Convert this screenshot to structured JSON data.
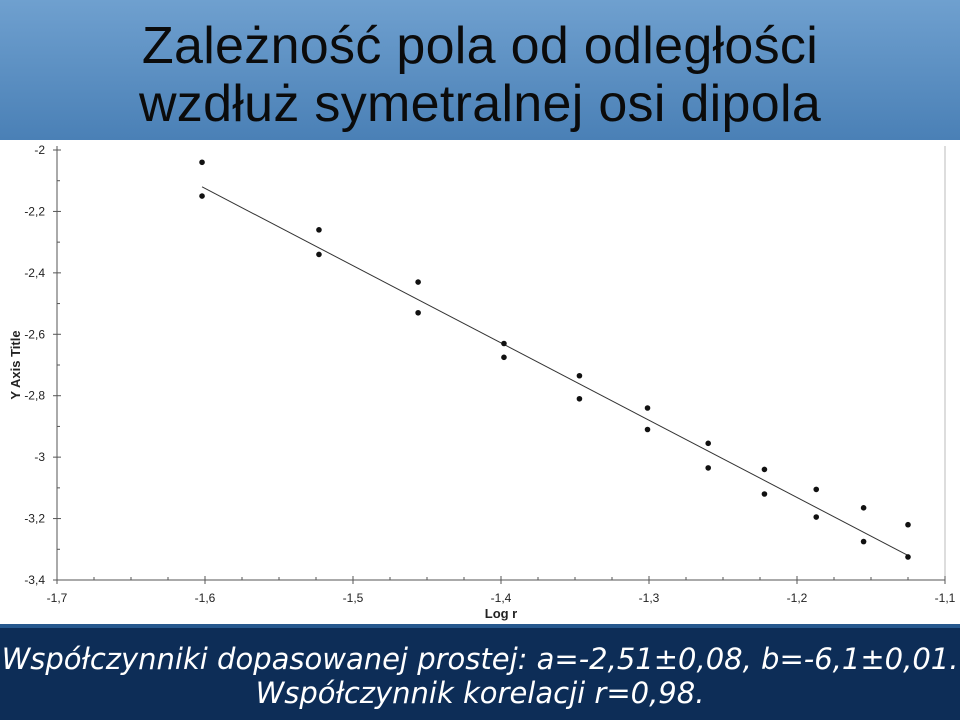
{
  "slide": {
    "title_line1": "Zależność pola od odległości",
    "title_line2": "wzdłuż symetralnej osi dipola",
    "footer_line1": "Współczynniki dopasowanej prostej: a=-2,51±0,08, b=-6,1±0,01.",
    "footer_line2": "Współczynnik korelacji r=0,98."
  },
  "colors": {
    "point": "#111111",
    "fit_line": "#333333",
    "axis": "#555555"
  },
  "chart_data": {
    "type": "scatter",
    "title": "",
    "xlabel": "Log r",
    "ylabel": "Y Axis Title",
    "xlim": [
      -1.7,
      -1.1
    ],
    "ylim": [
      -3.4,
      -2.0
    ],
    "x_ticks": [
      -1.7,
      -1.6,
      -1.5,
      -1.4,
      -1.3,
      -1.2,
      -1.1
    ],
    "x_tick_labels": [
      "-1,7",
      "-1,6",
      "-1,5",
      "-1,4",
      "-1,3",
      "-1,2",
      "-1,1"
    ],
    "y_ticks": [
      -2.0,
      -2.2,
      -2.4,
      -2.6,
      -2.8,
      -3.0,
      -3.2,
      -3.4
    ],
    "y_tick_labels": [
      "-2",
      "-2,2",
      "-2,4",
      "-2,6",
      "-2,8",
      "-3",
      "-3,2",
      "-3,4"
    ],
    "grid": false,
    "series": [
      {
        "points": [
          [
            -1.602,
            -2.04
          ],
          [
            -1.602,
            -2.15
          ],
          [
            -1.523,
            -2.26
          ],
          [
            -1.523,
            -2.34
          ],
          [
            -1.456,
            -2.43
          ],
          [
            -1.456,
            -2.53
          ],
          [
            -1.398,
            -2.63
          ],
          [
            -1.398,
            -2.675
          ],
          [
            -1.347,
            -2.735
          ],
          [
            -1.347,
            -2.81
          ],
          [
            -1.301,
            -2.84
          ],
          [
            -1.301,
            -2.91
          ],
          [
            -1.26,
            -2.955
          ],
          [
            -1.26,
            -3.035
          ],
          [
            -1.222,
            -3.04
          ],
          [
            -1.222,
            -3.12
          ],
          [
            -1.187,
            -3.105
          ],
          [
            -1.187,
            -3.195
          ],
          [
            -1.155,
            -3.165
          ],
          [
            -1.155,
            -3.275
          ],
          [
            -1.125,
            -3.22
          ],
          [
            -1.125,
            -3.325
          ]
        ]
      }
    ],
    "fit_line": {
      "x": [
        -1.602,
        -1.125
      ],
      "y": [
        -2.12,
        -3.32
      ]
    }
  }
}
